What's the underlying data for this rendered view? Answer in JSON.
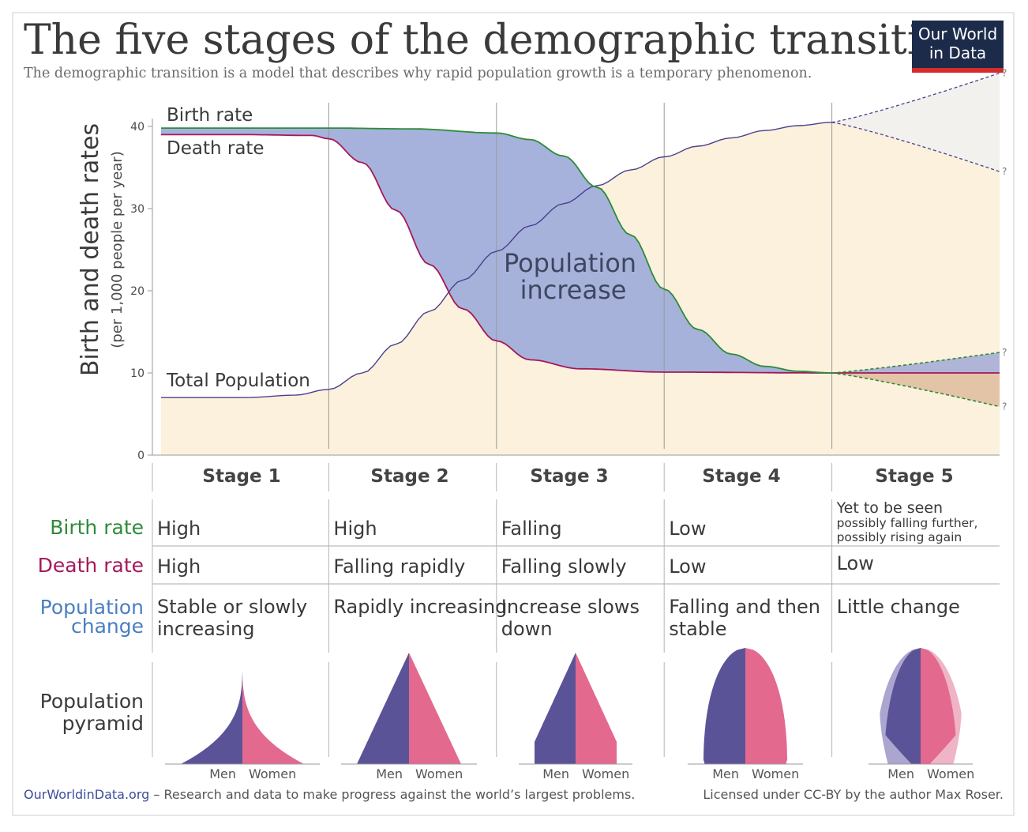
{
  "header": {
    "title": "The five stages of the demographic transition",
    "subtitle": "The demographic transition is a model that describes why rapid population growth is a temporary phenomenon.",
    "logo_line1": "Our World",
    "logo_line2": "in Data"
  },
  "chart_data": {
    "type": "line",
    "title": "The five stages of the demographic transition",
    "subtitle": "The demographic transition is a model that describes why rapid population growth is a temporary phenomenon.",
    "ylabel": "Birth and death rates",
    "ylabel_sub": "(per 1,000 people per year)",
    "ylim": [
      0,
      40
    ],
    "y_ticks": [
      0,
      10,
      20,
      30,
      40
    ],
    "x_range": [
      0,
      5
    ],
    "stages": [
      "Stage 1",
      "Stage 2",
      "Stage 3",
      "Stage 4",
      "Stage 5"
    ],
    "grid": "vertical stage dividers",
    "area_label": "Population increase",
    "unknown_marker": "?",
    "series": [
      {
        "name": "Birth rate",
        "color": "#2e8b3a",
        "x": [
          0,
          0.5,
          1.0,
          1.5,
          2.0,
          2.2,
          2.4,
          2.6,
          2.8,
          3.0,
          3.2,
          3.4,
          3.6,
          3.8,
          4.0
        ],
        "y": [
          39.8,
          39.8,
          39.8,
          39.7,
          39.2,
          38.4,
          36.4,
          32.6,
          26.8,
          20.2,
          15.3,
          12.3,
          10.8,
          10.2,
          10.0
        ]
      },
      {
        "name": "Death rate",
        "color": "#a3195b",
        "x": [
          0,
          0.5,
          0.9,
          1.0,
          1.2,
          1.4,
          1.6,
          1.8,
          2.0,
          2.2,
          2.5,
          3.0,
          4.0
        ],
        "y": [
          39.0,
          39.0,
          38.9,
          38.5,
          35.6,
          29.8,
          23.2,
          17.8,
          13.9,
          11.6,
          10.5,
          10.1,
          10.0
        ]
      },
      {
        "name": "Total Population",
        "color": "#4b3f8f",
        "x": [
          0,
          0.5,
          0.8,
          1.0,
          1.2,
          1.4,
          1.6,
          1.8,
          2.0,
          2.2,
          2.4,
          2.6,
          2.8,
          3.0,
          3.2,
          3.4,
          3.6,
          3.8,
          4.0
        ],
        "y": [
          7.0,
          7.0,
          7.3,
          8.0,
          10.0,
          13.5,
          17.5,
          21.3,
          24.8,
          27.9,
          30.6,
          32.8,
          34.7,
          36.3,
          37.6,
          38.6,
          39.5,
          40.1,
          40.5
        ]
      }
    ],
    "stage5_projection": {
      "x": [
        4,
        5
      ],
      "birth_rate_range": [
        5.9,
        12.5
      ],
      "death_rate": 10.0,
      "total_population_range": [
        34.5,
        46.5
      ]
    }
  },
  "table": {
    "rows": [
      {
        "label": "Birth rate",
        "color": "#2e8b3a",
        "cells": [
          "High",
          "High",
          "Falling",
          "Low",
          "Yet to be seen"
        ],
        "extra": [
          "possibly falling further,",
          "possibly rising again"
        ]
      },
      {
        "label": "Death rate",
        "color": "#a3195b",
        "cells": [
          "High",
          "Falling rapidly",
          "Falling slowly",
          "Low",
          "Low"
        ]
      },
      {
        "label_lines": [
          "Population",
          "change"
        ],
        "color": "#4a7fc1",
        "cells": [
          [
            "Stable or slowly",
            "increasing"
          ],
          [
            "Rapidly increasing"
          ],
          [
            "Increase slows",
            "down"
          ],
          [
            "Falling and then",
            "stable"
          ],
          [
            "Little change"
          ]
        ]
      }
    ],
    "pyramid_label_lines": [
      "Population",
      "pyramid"
    ],
    "men_label": "Men",
    "women_label": "Women"
  },
  "colors": {
    "men": "#5b5398",
    "women": "#e3698f",
    "population_fill": "#fbf1dc",
    "increase_fill": "#a1aed9",
    "logo_bg": "#1c2b4a",
    "logo_accent": "#d42b2b"
  },
  "footer": {
    "site": "OurWorldinData.org",
    "tagline": " – Research and data to make progress against the world’s largest problems.",
    "license": "Licensed under CC-BY by the author Max Roser."
  }
}
